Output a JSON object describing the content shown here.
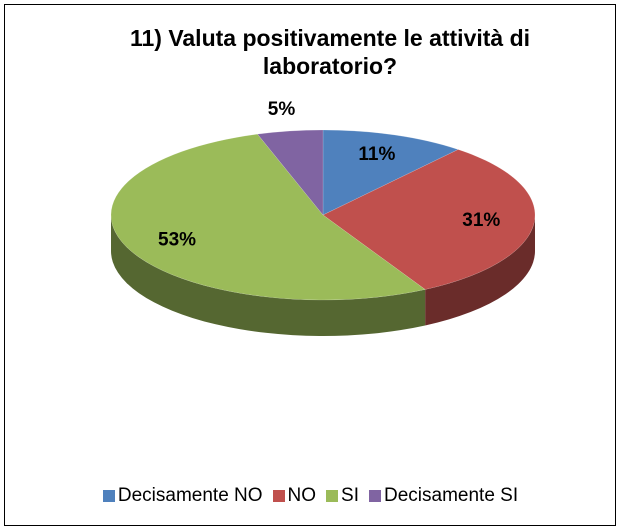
{
  "chart_data": {
    "type": "pie",
    "title": "11) Valuta positivamente le attività di laboratorio?",
    "categories": [
      "Decisamente NO",
      "NO",
      "SI",
      "Decisamente SI"
    ],
    "values": [
      11,
      31,
      53,
      5
    ],
    "value_labels": [
      "11%",
      "31%",
      "53%",
      "5%"
    ],
    "colors": [
      "#4f81bd",
      "#c0504d",
      "#9bbb59",
      "#8064a2"
    ],
    "legend": "bottom"
  }
}
